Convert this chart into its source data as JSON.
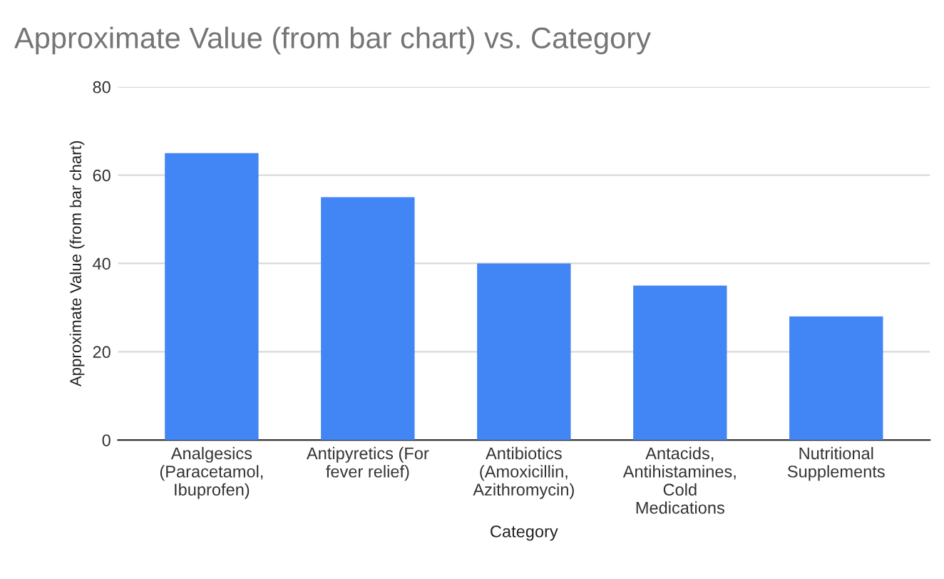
{
  "chart_data": {
    "type": "bar",
    "title": "Approximate Value (from bar chart) vs. Category",
    "xlabel": "Category",
    "ylabel": "Approximate Value (from bar chart)",
    "categories": [
      "Analgesics\n(Paracetamol,\nIbuprofen)",
      "Antipyretics (For\nfever relief)",
      "Antibiotics\n(Amoxicillin,\nAzithromycin)",
      "Antacids,\nAntihistamines,\nCold\nMedications",
      "Nutritional\nSupplements"
    ],
    "values": [
      65,
      55,
      40,
      35,
      28
    ],
    "color": "#4285f4",
    "ylim": [
      0,
      80
    ],
    "yticks": [
      0,
      20,
      40,
      60,
      80
    ],
    "grid": "y",
    "legend": false
  }
}
